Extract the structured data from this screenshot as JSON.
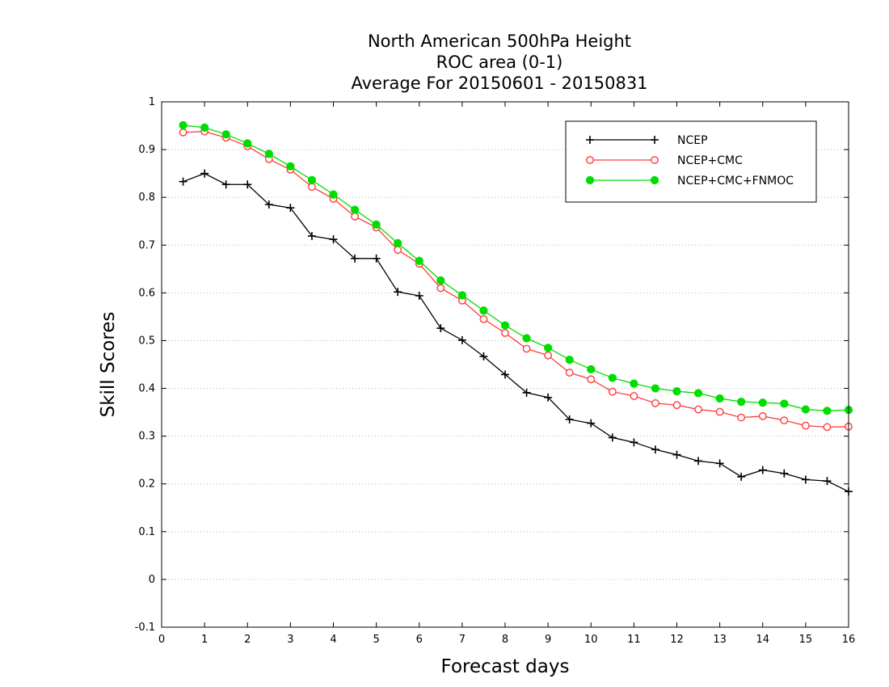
{
  "chart_data": {
    "type": "line",
    "title": [
      "North American 500hPa Height",
      "ROC area (0-1)",
      "Average For 20150601 - 20150831"
    ],
    "xlabel": "Forecast days",
    "ylabel": "Skill Scores",
    "xlim": [
      0,
      16
    ],
    "ylim": [
      -0.1,
      1
    ],
    "xticks": [
      0,
      1,
      2,
      3,
      4,
      5,
      6,
      7,
      8,
      9,
      10,
      11,
      12,
      13,
      14,
      15,
      16
    ],
    "yticks": [
      -0.1,
      0,
      0.1,
      0.2,
      0.3,
      0.4,
      0.5,
      0.6,
      0.7,
      0.8,
      0.9,
      1
    ],
    "ytick_labels": [
      "-0.1",
      "0",
      "0.1",
      "0.2",
      "0.3",
      "0.4",
      "0.5",
      "0.6",
      "0.7",
      "0.8",
      "0.9",
      "1"
    ],
    "grid": "horizontal dotted",
    "legend_position": "top-right",
    "x": [
      0.5,
      1,
      1.5,
      2,
      2.5,
      3,
      3.5,
      4,
      4.5,
      5,
      5.5,
      6,
      6.5,
      7,
      7.5,
      8,
      8.5,
      9,
      9.5,
      10,
      10.5,
      11,
      11.5,
      12,
      12.5,
      13,
      13.5,
      14,
      14.5,
      15,
      15.5,
      16
    ],
    "series": [
      {
        "name": "NCEP",
        "color": "#000000",
        "marker": "plus",
        "values": [
          0.833,
          0.85,
          0.827,
          0.827,
          0.785,
          0.778,
          0.719,
          0.712,
          0.672,
          0.672,
          0.602,
          0.594,
          0.526,
          0.501,
          0.467,
          0.429,
          0.391,
          0.381,
          0.335,
          0.327,
          0.297,
          0.287,
          0.272,
          0.261,
          0.248,
          0.243,
          0.215,
          0.229,
          0.222,
          0.209,
          0.206,
          0.184
        ]
      },
      {
        "name": "NCEP+CMC",
        "color": "#ff3b3b",
        "marker": "open-circle",
        "values": [
          0.936,
          0.938,
          0.925,
          0.907,
          0.88,
          0.858,
          0.822,
          0.797,
          0.76,
          0.737,
          0.69,
          0.661,
          0.61,
          0.584,
          0.545,
          0.516,
          0.483,
          0.469,
          0.433,
          0.419,
          0.393,
          0.384,
          0.369,
          0.365,
          0.356,
          0.351,
          0.339,
          0.342,
          0.333,
          0.322,
          0.319,
          0.32
        ]
      },
      {
        "name": "NCEP+CMC+FNMOC",
        "color": "#00dd00",
        "marker": "filled-circle",
        "values": [
          0.951,
          0.946,
          0.932,
          0.913,
          0.891,
          0.865,
          0.836,
          0.806,
          0.774,
          0.743,
          0.704,
          0.667,
          0.626,
          0.595,
          0.563,
          0.532,
          0.505,
          0.485,
          0.46,
          0.44,
          0.422,
          0.41,
          0.4,
          0.394,
          0.39,
          0.379,
          0.372,
          0.37,
          0.368,
          0.356,
          0.353,
          0.355
        ]
      }
    ]
  }
}
